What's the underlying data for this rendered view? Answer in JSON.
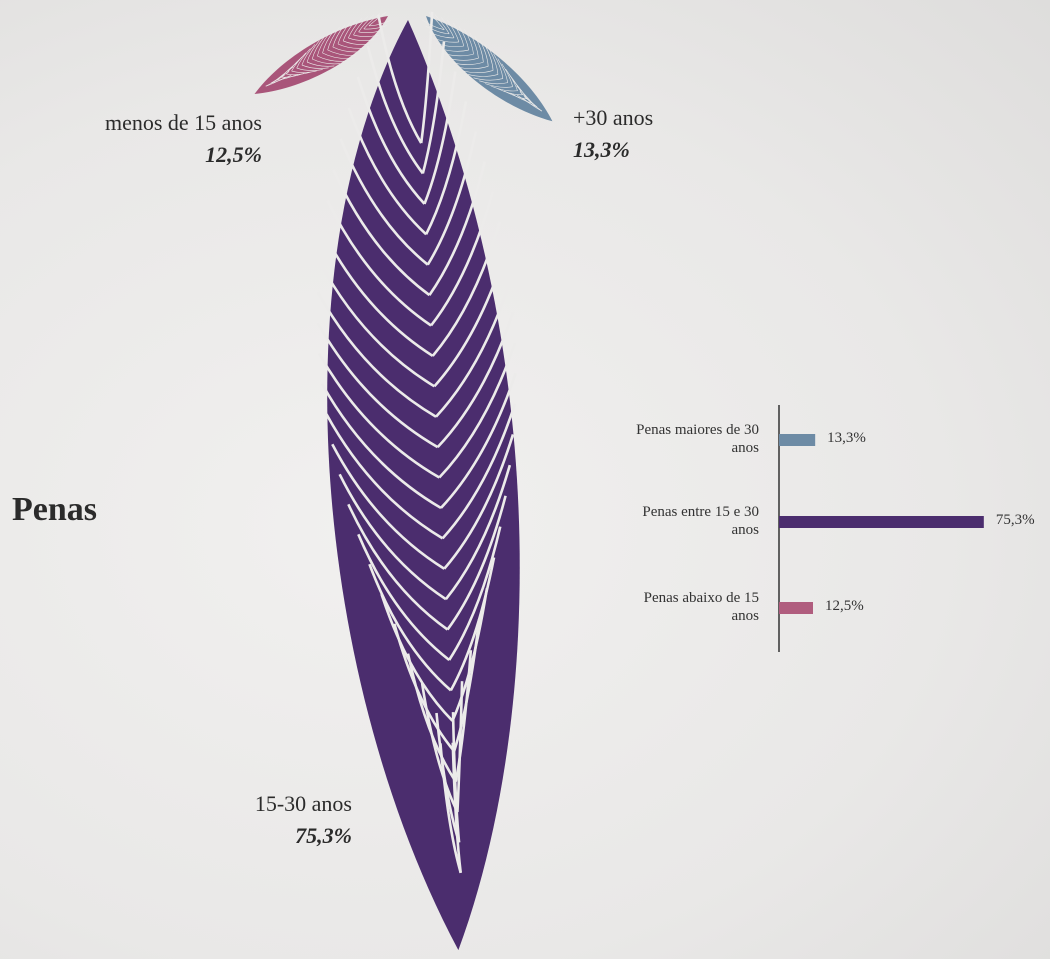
{
  "chart_data": [
    {
      "type": "leaf",
      "title": "Penas",
      "categories": [
        "menos de 15 anos",
        "+30 anos",
        "15-30 anos"
      ],
      "values": [
        12.5,
        13.3,
        75.3
      ],
      "value_labels": [
        "12,5%",
        "13,3%",
        "75,3%"
      ],
      "colors": [
        "#a9557a",
        "#6d8ba5",
        "#4b2d6e"
      ]
    },
    {
      "type": "bar",
      "categories": [
        "Penas maiores de 30 anos",
        "Penas entre 15 e 30 anos",
        "Penas abaixo de 15 anos"
      ],
      "values": [
        13.3,
        75.3,
        12.5
      ],
      "value_labels": [
        "13,3%",
        "75,3%",
        "12,5%"
      ],
      "colors": [
        "#6d8ba5",
        "#4b2d6e",
        "#b05d7e"
      ]
    }
  ]
}
